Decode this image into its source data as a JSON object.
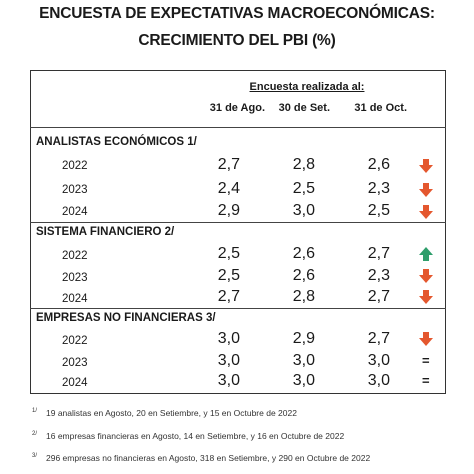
{
  "title": {
    "line1": "ENCUESTA DE EXPECTATIVAS MACROECONÓMICAS:",
    "line2": "CRECIMIENTO DEL PBI (%)"
  },
  "table": {
    "header_group": "Encuesta realizada al:",
    "columns": [
      "31 de Ago.",
      "30 de Set.",
      "31 de Oct."
    ],
    "sections": [
      {
        "name": "ANALISTAS ECONÓMICOS 1/",
        "rows": [
          {
            "year": "2022",
            "values": [
              "2,7",
              "2,8",
              "2,6"
            ],
            "trend": "down"
          },
          {
            "year": "2023",
            "values": [
              "2,4",
              "2,5",
              "2,3"
            ],
            "trend": "down"
          },
          {
            "year": "2024",
            "values": [
              "2,9",
              "3,0",
              "2,5"
            ],
            "trend": "down"
          }
        ]
      },
      {
        "name": "SISTEMA FINANCIERO 2/",
        "rows": [
          {
            "year": "2022",
            "values": [
              "2,5",
              "2,6",
              "2,7"
            ],
            "trend": "up"
          },
          {
            "year": "2023",
            "values": [
              "2,5",
              "2,6",
              "2,3"
            ],
            "trend": "down"
          },
          {
            "year": "2024",
            "values": [
              "2,7",
              "2,8",
              "2,7"
            ],
            "trend": "down"
          }
        ]
      },
      {
        "name": "EMPRESAS NO FINANCIERAS 3/",
        "rows": [
          {
            "year": "2022",
            "values": [
              "3,0",
              "2,9",
              "2,7"
            ],
            "trend": "down"
          },
          {
            "year": "2023",
            "values": [
              "3,0",
              "3,0",
              "3,0"
            ],
            "trend": "equal",
            "equal_symbol": "="
          },
          {
            "year": "2024",
            "values": [
              "3,0",
              "3,0",
              "3,0"
            ],
            "trend": "equal",
            "equal_symbol": "="
          }
        ]
      }
    ]
  },
  "footnotes": [
    {
      "mark": "1/",
      "text": "19 analistas en Agosto, 20 en Setiembre, y 15 en Octubre de 2022"
    },
    {
      "mark": "2/",
      "text": "16 empresas financieras en Agosto, 14 en Setiembre, y 16 en Octubre de 2022"
    },
    {
      "mark": "3/",
      "text": "296 empresas no financieras en Agosto, 318 en Setiembre, y 290 en Octubre de 2022"
    }
  ],
  "colors": {
    "down_arrow": "#e4572e",
    "up_arrow": "#2e9e6b",
    "border": "#333333"
  },
  "icons": {
    "down": "arrow-down-icon",
    "up": "arrow-up-icon"
  }
}
